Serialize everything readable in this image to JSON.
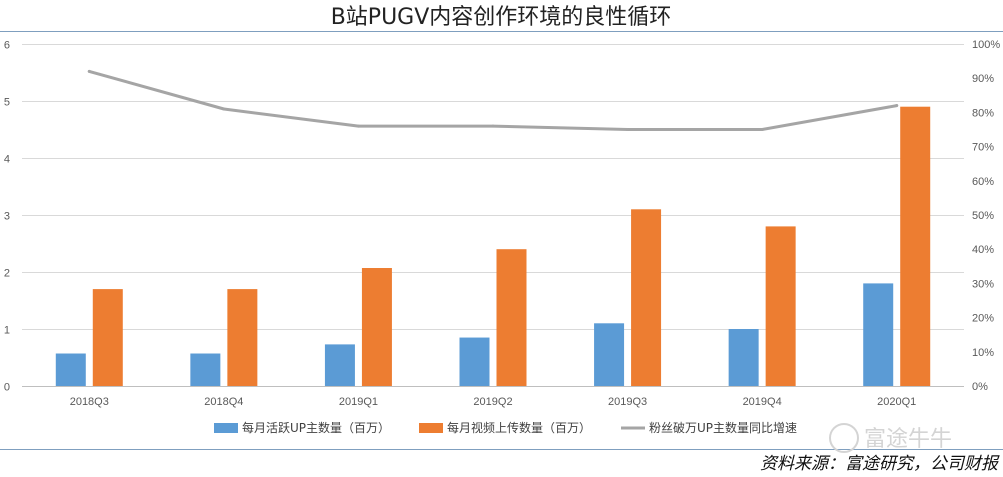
{
  "chart_data": {
    "type": "bar",
    "title": "B站PUGV内容创作环境的良性循环",
    "categories": [
      "2018Q3",
      "2018Q4",
      "2019Q1",
      "2019Q2",
      "2019Q3",
      "2019Q4",
      "2020Q1"
    ],
    "series": [
      {
        "name": "每月活跃UP主数量（百万）",
        "type": "bar",
        "axis": "left",
        "color": "#5B9BD5",
        "values": [
          0.57,
          0.57,
          0.73,
          0.85,
          1.1,
          1.0,
          1.8
        ]
      },
      {
        "name": "每月视频上传数量（百万）",
        "type": "bar",
        "axis": "left",
        "color": "#ED7D31",
        "values": [
          1.7,
          1.7,
          2.07,
          2.4,
          3.1,
          2.8,
          4.9
        ]
      },
      {
        "name": "粉丝破万UP主数量同比增速",
        "type": "line",
        "axis": "right",
        "color": "#A5A5A5",
        "values": [
          0.92,
          0.81,
          0.76,
          0.76,
          0.75,
          0.75,
          0.82
        ]
      }
    ],
    "y_left": {
      "range": [
        0,
        6
      ],
      "ticks": [
        "0",
        "1",
        "2",
        "3",
        "4",
        "5",
        "6"
      ]
    },
    "y_right": {
      "range": [
        0,
        1
      ],
      "ticks": [
        "0%",
        "10%",
        "20%",
        "30%",
        "40%",
        "50%",
        "60%",
        "70%",
        "80%",
        "90%",
        "100%"
      ]
    },
    "grid": true,
    "legend_position": "bottom"
  },
  "source_note": "资料来源：富途研究，公司财报",
  "watermark_text": "富途牛牛",
  "colors": {
    "grid": "#D9D9D9",
    "axis": "#BFBFBF",
    "rule": "#7F9FBF"
  }
}
